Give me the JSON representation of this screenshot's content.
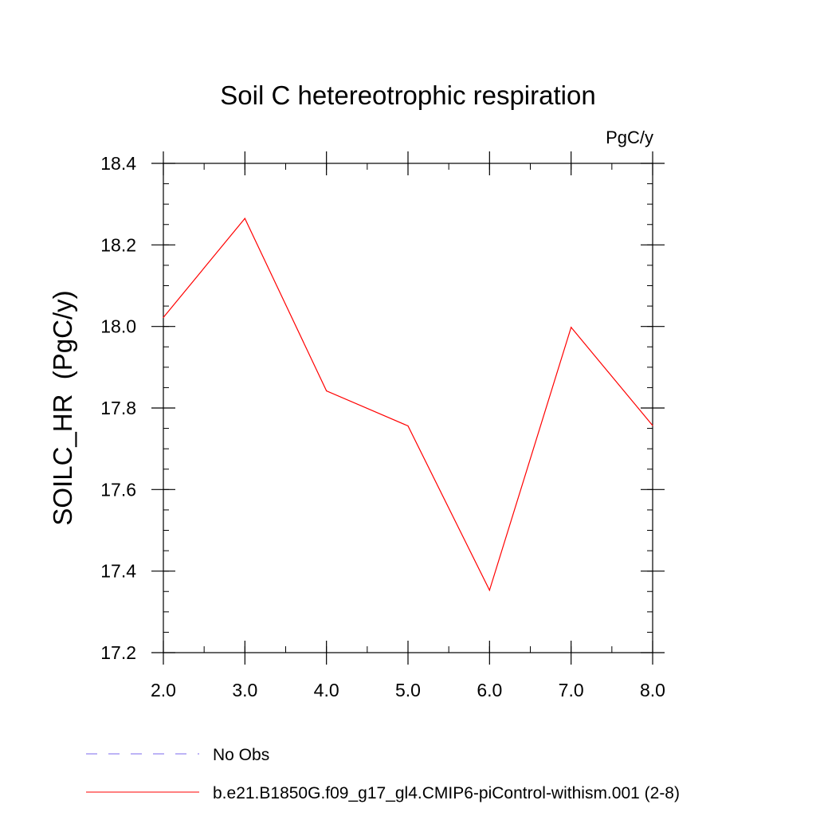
{
  "chart_data": {
    "type": "line",
    "title": "Soil C hetereotrophic respiration",
    "units_label": "PgC/y",
    "xlabel": "",
    "ylabel": "SOILC_HR  (PgC/y)",
    "xlim": [
      2.0,
      8.0
    ],
    "ylim": [
      17.2,
      18.4
    ],
    "x_ticks": [
      2.0,
      3.0,
      4.0,
      5.0,
      6.0,
      7.0,
      8.0
    ],
    "x_tick_labels": [
      "2.0",
      "3.0",
      "4.0",
      "5.0",
      "6.0",
      "7.0",
      "8.0"
    ],
    "x_minor_step": 0.5,
    "y_ticks": [
      17.2,
      17.4,
      17.6,
      17.8,
      18.0,
      18.2,
      18.4
    ],
    "y_tick_labels": [
      "17.2",
      "17.4",
      "17.6",
      "17.8",
      "18.0",
      "18.2",
      "18.4"
    ],
    "y_minor_step": 0.05,
    "grid": false,
    "legend_position": "bottom",
    "series": [
      {
        "name": "b.e21.B1850G.f09_g17_gl4.CMIP6-piControl-withism.001 (2-8)",
        "color": "#ff0000",
        "dash": "solid",
        "x": [
          2.0,
          3.0,
          4.0,
          5.0,
          6.0,
          7.0,
          8.0
        ],
        "y": [
          18.022,
          18.265,
          17.842,
          17.756,
          17.353,
          17.998,
          17.757
        ]
      }
    ],
    "legend": [
      {
        "label": "No Obs",
        "color": "#7b68ee",
        "dash": "dashed"
      },
      {
        "label": "b.e21.B1850G.f09_g17_gl4.CMIP6-piControl-withism.001 (2-8)",
        "color": "#ff0000",
        "dash": "solid"
      }
    ]
  }
}
